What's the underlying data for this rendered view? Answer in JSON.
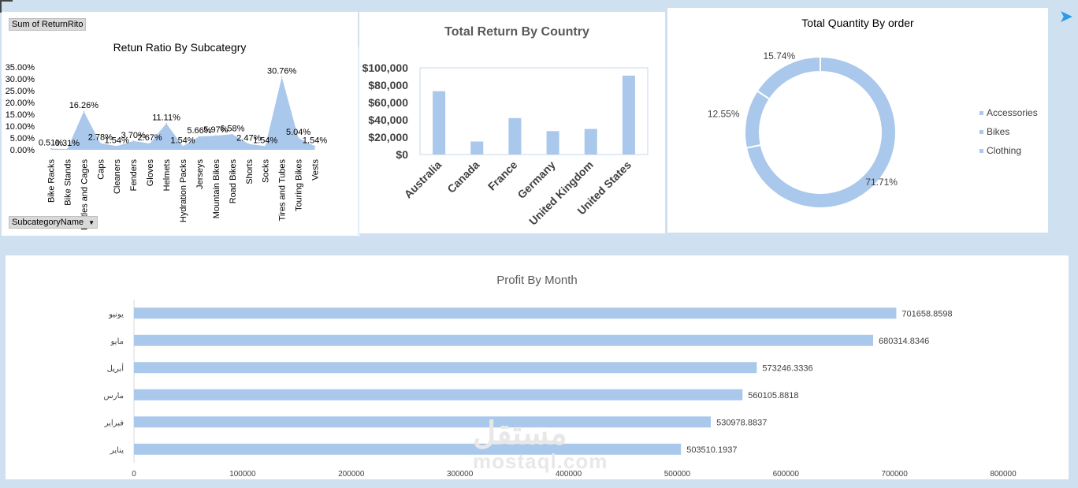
{
  "panel1": {
    "pivot_value_button": "Sum of ReturnRito",
    "pivot_field_button": "SubcategoryName",
    "dropdown_glyph": "▼"
  },
  "watermark": {
    "arabic": "مستقل",
    "latin": "mostaql.com"
  },
  "chart_data": [
    {
      "type": "area",
      "title": "Retun Ratio By Subcategry",
      "categories": [
        "Bike Racks",
        "Bike Stands",
        "Bottles and Cages",
        "Caps",
        "Cleaners",
        "Fenders",
        "Gloves",
        "Helmets",
        "Hydration Packs",
        "Jerseys",
        "Mountain Bikes",
        "Road Bikes",
        "Shorts",
        "Socks",
        "Tires and Tubes",
        "Touring Bikes",
        "Vests"
      ],
      "values": [
        0.51,
        0.31,
        16.26,
        2.78,
        1.54,
        3.7,
        2.67,
        11.11,
        1.54,
        5.66,
        5.97,
        6.58,
        2.47,
        1.54,
        30.76,
        5.04,
        1.54
      ],
      "data_labels": [
        "0.51%",
        "0.31%",
        "16.26%",
        "2.78%",
        "1.54%",
        "3.70%",
        "2.67%",
        "11.11%",
        "1.54%",
        "5.66%",
        "5.97%",
        "6.58%",
        "2.47%",
        "1.54%",
        "30.76%",
        "5.04%",
        "1.54%"
      ],
      "y_ticks": [
        "0.00%",
        "5.00%",
        "10.00%",
        "15.00%",
        "20.00%",
        "25.00%",
        "30.00%",
        "35.00%"
      ],
      "ylim": [
        0,
        35
      ],
      "color": "#a9c8eb",
      "grid": false
    },
    {
      "type": "bar",
      "title": "Total Return By Country",
      "categories": [
        "Australia",
        "Canada",
        "France",
        "Germany",
        "United Kingdom",
        "United States"
      ],
      "values": [
        73000,
        15000,
        42000,
        27000,
        29500,
        91000
      ],
      "y_ticks": [
        "$0",
        "$20,000",
        "$40,000",
        "$60,000",
        "$80,000",
        "$100,000"
      ],
      "ylim": [
        0,
        100000
      ],
      "color": "#a9c8eb",
      "grid": false
    },
    {
      "type": "pie",
      "donut": true,
      "title": "Total Quantity By order",
      "categories": [
        "Accessories",
        "Bikes",
        "Clothing"
      ],
      "values": [
        71.71,
        12.55,
        15.74
      ],
      "data_labels": [
        "71.71%",
        "12.55%",
        "15.74%"
      ],
      "legend_position": "right",
      "color": "#a9c8eb"
    },
    {
      "type": "bar",
      "orientation": "horizontal",
      "title": "Profit By Month",
      "categories": [
        "يونيو",
        "مايو",
        "أبريل",
        "مارس",
        "فبراير",
        "يناير"
      ],
      "values": [
        701658.8598,
        680314.8346,
        573246.3336,
        560105.8818,
        530978.8837,
        503510.1937
      ],
      "data_labels": [
        "701658.8598",
        "680314.8346",
        "573246.3336",
        "560105.8818",
        "530978.8837",
        "503510.1937"
      ],
      "x_ticks": [
        "0",
        "100000",
        "200000",
        "300000",
        "400000",
        "500000",
        "600000",
        "700000",
        "800000"
      ],
      "xlim": [
        0,
        800000
      ],
      "color": "#a9c8eb",
      "grid": false
    }
  ]
}
